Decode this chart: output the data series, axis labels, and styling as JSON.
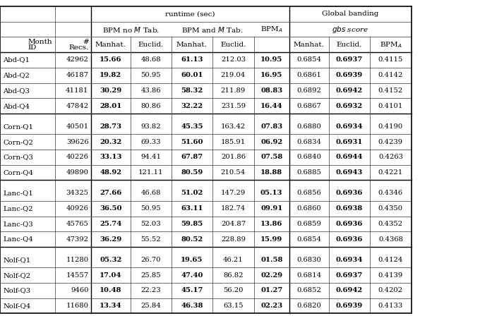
{
  "data_rows": [
    [
      "Abd-Q1",
      "42962",
      "15.66",
      "48.68",
      "61.13",
      "212.03",
      "10.95",
      "0.6854",
      "0.6937",
      "0.4115"
    ],
    [
      "Abd-Q2",
      "46187",
      "19.82",
      "50.95",
      "60.01",
      "219.04",
      "16.95",
      "0.6861",
      "0.6939",
      "0.4142"
    ],
    [
      "Abd-Q3",
      "41181",
      "30.29",
      "43.86",
      "58.32",
      "211.89",
      "08.83",
      "0.6892",
      "0.6942",
      "0.4152"
    ],
    [
      "Abd-Q4",
      "47842",
      "28.01",
      "80.86",
      "32.22",
      "231.59",
      "16.44",
      "0.6867",
      "0.6932",
      "0.4101"
    ],
    [
      "Corn-Q1",
      "40501",
      "28.73",
      "93.82",
      "45.35",
      "163.42",
      "07.83",
      "0.6880",
      "0.6934",
      "0.4190"
    ],
    [
      "Corn-Q2",
      "39626",
      "20.32",
      "69.33",
      "51.60",
      "185.91",
      "06.92",
      "0.6834",
      "0.6931",
      "0.4239"
    ],
    [
      "Corn-Q3",
      "40226",
      "33.13",
      "94.41",
      "67.87",
      "201.86",
      "07.58",
      "0.6840",
      "0.6944",
      "0.4263"
    ],
    [
      "Corn-Q4",
      "49890",
      "48.92",
      "121.11",
      "80.59",
      "210.54",
      "18.88",
      "0.6885",
      "0.6943",
      "0.4221"
    ],
    [
      "Lanc-Q1",
      "34325",
      "27.66",
      "46.68",
      "51.02",
      "147.29",
      "05.13",
      "0.6856",
      "0.6936",
      "0.4346"
    ],
    [
      "Lanc-Q2",
      "40926",
      "36.50",
      "50.95",
      "63.11",
      "182.74",
      "09.91",
      "0.6860",
      "0.6938",
      "0.4350"
    ],
    [
      "Lanc-Q3",
      "45765",
      "25.74",
      "52.03",
      "59.85",
      "204.87",
      "13.86",
      "0.6859",
      "0.6936",
      "0.4352"
    ],
    [
      "Lanc-Q4",
      "47392",
      "36.29",
      "55.52",
      "80.52",
      "228.89",
      "15.99",
      "0.6854",
      "0.6936",
      "0.4368"
    ],
    [
      "Nolf-Q1",
      "11280",
      "05.32",
      "26.70",
      "19.65",
      "46.21",
      "01.58",
      "0.6830",
      "0.6934",
      "0.4124"
    ],
    [
      "Nolf-Q2",
      "14557",
      "17.04",
      "25.85",
      "47.40",
      "86.82",
      "02.29",
      "0.6814",
      "0.6937",
      "0.4139"
    ],
    [
      "Nolf-Q3",
      "9460",
      "10.48",
      "22.23",
      "45.17",
      "56.20",
      "01.27",
      "0.6852",
      "0.6942",
      "0.4202"
    ],
    [
      "Nolf-Q4",
      "11680",
      "13.34",
      "25.84",
      "46.38",
      "63.15",
      "02.23",
      "0.6820",
      "0.6939",
      "0.4133"
    ]
  ],
  "bold_data_cols": [
    2,
    4,
    6,
    8
  ],
  "group_separators_after": [
    3,
    7,
    11
  ],
  "figsize": [
    6.97,
    4.48
  ],
  "dpi": 100,
  "fs": 7.2,
  "fs_header": 7.5
}
